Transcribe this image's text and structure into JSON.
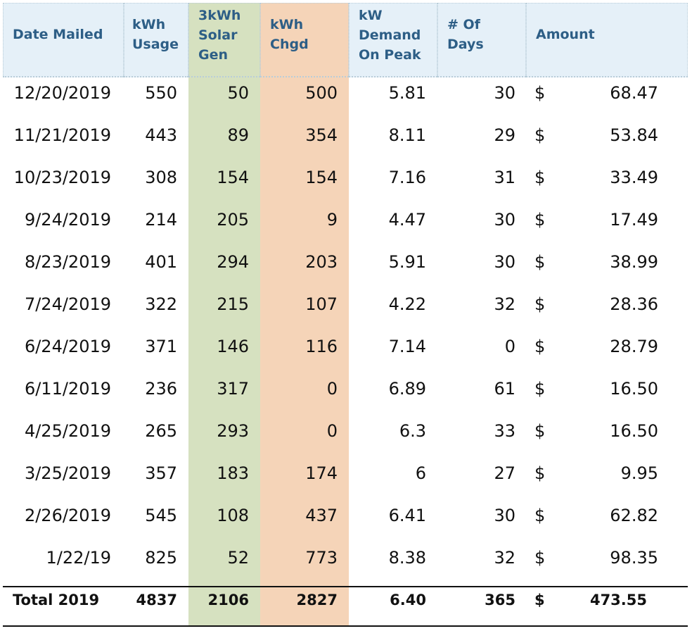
{
  "table": {
    "headers": {
      "date": "Date Mailed",
      "usage": "kWh\nUsage",
      "solar": "3kWh\nSolar\nGen",
      "chgd": "kWh\nChgd",
      "demand": "kW\nDemand\nOn Peak",
      "days": "# Of\nDays",
      "amount": "Amount"
    },
    "rows": [
      {
        "date": "12/20/2019",
        "usage": "550",
        "solar": "50",
        "chgd": "500",
        "demand": "5.81",
        "days": "30",
        "currency": "$",
        "amount": "68.47"
      },
      {
        "date": "11/21/2019",
        "usage": "443",
        "solar": "89",
        "chgd": "354",
        "demand": "8.11",
        "days": "29",
        "currency": "$",
        "amount": "53.84"
      },
      {
        "date": "10/23/2019",
        "usage": "308",
        "solar": "154",
        "chgd": "154",
        "demand": "7.16",
        "days": "31",
        "currency": "$",
        "amount": "33.49"
      },
      {
        "date": "9/24/2019",
        "usage": "214",
        "solar": "205",
        "chgd": "9",
        "demand": "4.47",
        "days": "30",
        "currency": "$",
        "amount": "17.49"
      },
      {
        "date": "8/23/2019",
        "usage": "401",
        "solar": "294",
        "chgd": "203",
        "demand": "5.91",
        "days": "30",
        "currency": "$",
        "amount": "38.99"
      },
      {
        "date": "7/24/2019",
        "usage": "322",
        "solar": "215",
        "chgd": "107",
        "demand": "4.22",
        "days": "32",
        "currency": "$",
        "amount": "28.36"
      },
      {
        "date": "6/24/2019",
        "usage": "371",
        "solar": "146",
        "chgd": "116",
        "demand": "7.14",
        "days": "0",
        "currency": "$",
        "amount": "28.79"
      },
      {
        "date": "6/11/2019",
        "usage": "236",
        "solar": "317",
        "chgd": "0",
        "demand": "6.89",
        "days": "61",
        "currency": "$",
        "amount": "16.50"
      },
      {
        "date": "4/25/2019",
        "usage": "265",
        "solar": "293",
        "chgd": "0",
        "demand": "6.3",
        "days": "33",
        "currency": "$",
        "amount": "16.50"
      },
      {
        "date": "3/25/2019",
        "usage": "357",
        "solar": "183",
        "chgd": "174",
        "demand": "6",
        "days": "27",
        "currency": "$",
        "amount": "9.95"
      },
      {
        "date": "2/26/2019",
        "usage": "545",
        "solar": "108",
        "chgd": "437",
        "demand": "6.41",
        "days": "30",
        "currency": "$",
        "amount": "62.82"
      },
      {
        "date": "1/22/19",
        "usage": "825",
        "solar": "52",
        "chgd": "773",
        "demand": "8.38",
        "days": "32",
        "currency": "$",
        "amount": "98.35"
      }
    ],
    "total": {
      "label": "Total 2019",
      "usage": "4837",
      "solar": "2106",
      "chgd": "2827",
      "demand": "6.40",
      "days": "365",
      "currency": "$",
      "amount": "473.55"
    }
  },
  "colors": {
    "header_bg": "#e5f0f8",
    "header_text": "#2d5e86",
    "solar_column": "#d6e1c0",
    "charged_column": "#f5d4b8"
  }
}
